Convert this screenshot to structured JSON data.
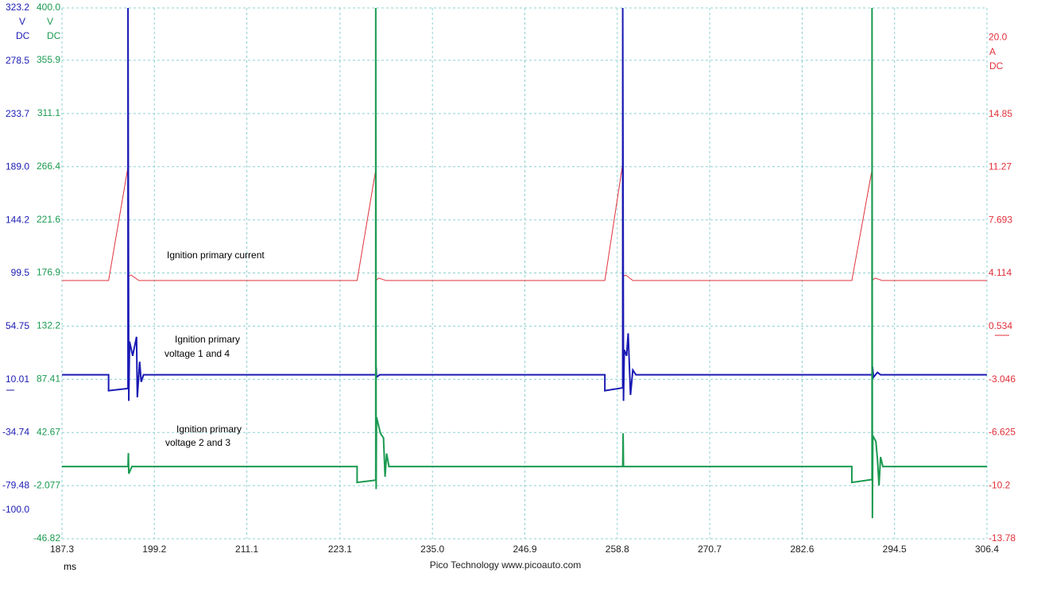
{
  "chart_data": {
    "type": "line",
    "x_unit": "ms",
    "xlim": [
      187.3,
      306.4
    ],
    "xticks": [
      187.3,
      199.2,
      211.1,
      223.1,
      {
        "value": 235.0,
        "label": "235.0"
      },
      246.9,
      258.8,
      270.7,
      282.6,
      294.5,
      306.4
    ],
    "footer": "Pico Technology   www.picoauto.com",
    "axes": [
      {
        "color": "#1a1ab4",
        "side": "left",
        "grid": false,
        "unit": [
          "V",
          "DC"
        ],
        "ylim": [
          -124.2,
          323.2
        ],
        "yticks": [
          323.2,
          278.5,
          233.7,
          {
            "value": 189.0,
            "label": "189.0"
          },
          144.2,
          99.5,
          54.75,
          10.01,
          -34.74,
          -79.48,
          {
            "value": -100.0,
            "label": "-100.0"
          }
        ]
      },
      {
        "color": "#1a9a50",
        "side": "left",
        "grid": true,
        "unit": [
          "V",
          "DC"
        ],
        "ylim": [
          -46.82,
          400.0
        ],
        "yticks": [
          {
            "value": 400.0,
            "label": "400.0"
          },
          355.9,
          311.1,
          266.4,
          221.6,
          176.9,
          132.2,
          87.41,
          42.67,
          -2.077,
          -46.82
        ]
      },
      {
        "color": "#e0303a",
        "side": "right",
        "grid": false,
        "unit": [
          "A",
          "DC"
        ],
        "ylim": [
          -13.78,
          22.01
        ],
        "yticks": [
          {
            "value": 20.0,
            "label": "20.0"
          },
          14.85,
          11.27,
          7.693,
          4.114,
          0.534,
          -3.046,
          -6.625,
          -10.2,
          -13.78
        ]
      }
    ],
    "series": [
      {
        "label": [
          "Ignition primary current"
        ],
        "color": "#e0303a",
        "axis": 2,
        "x": [
          187.3,
          193.3,
          195.8,
          195.8,
          196.2,
          197.2,
          225.3,
          227.7,
          227.7,
          228.1,
          229.0,
          257.2,
          259.5,
          259.5,
          259.9,
          260.8,
          289.0,
          291.6,
          291.6,
          292.0,
          292.9,
          306.4
        ],
        "values": [
          3.63,
          3.63,
          11.3,
          3.9,
          4.0,
          3.63,
          3.63,
          11.1,
          3.63,
          3.8,
          3.63,
          3.63,
          11.5,
          3.9,
          4.0,
          3.63,
          3.63,
          11.1,
          3.63,
          3.8,
          3.63,
          3.63
        ]
      },
      {
        "label": [
          "Ignition primary",
          "voltage 1 and 4"
        ],
        "color": "#1a1ab4",
        "axis": 0,
        "x": [
          187.3,
          193.3,
          193.3,
          195.8,
          195.8,
          195.9,
          196.0,
          196.4,
          196.9,
          197.0,
          197.3,
          197.5,
          197.8,
          227.7,
          227.75,
          227.8,
          228.2,
          257.2,
          257.2,
          259.5,
          259.5,
          259.6,
          259.7,
          260.0,
          260.2,
          260.5,
          260.8,
          261.2,
          291.6,
          291.65,
          291.8,
          292.3,
          292.7,
          306.4
        ],
        "values": [
          14.0,
          14.0,
          0.6,
          2.5,
          323.2,
          -8,
          42,
          30,
          46,
          -5,
          25,
          8,
          14.0,
          14.0,
          20,
          12,
          14.0,
          14.0,
          0.6,
          3,
          323.2,
          -8,
          35,
          30,
          49,
          -3,
          18,
          14.0,
          14.0,
          21,
          12,
          16,
          14.0,
          14.0
        ]
      },
      {
        "label": [
          "Ignition primary",
          "voltage 2 and 3"
        ],
        "color": "#1a9a50",
        "axis": 1,
        "x": [
          187.3,
          195.8,
          195.85,
          195.9,
          196.3,
          225.3,
          225.3,
          227.7,
          227.7,
          227.75,
          227.8,
          228.3,
          228.7,
          228.9,
          229.1,
          229.4,
          259.5,
          259.55,
          259.6,
          289.0,
          289.0,
          291.6,
          291.6,
          291.65,
          291.7,
          292.1,
          292.3,
          292.5,
          292.7,
          293.0,
          306.4
        ],
        "values": [
          14.0,
          14.0,
          25.3,
          8,
          14.0,
          14.0,
          0.6,
          2.5,
          400.0,
          -5,
          55.5,
          42,
          38,
          5.3,
          25,
          14.0,
          14.0,
          42,
          14.0,
          14.0,
          0.6,
          3,
          400.0,
          -29.5,
          40,
          35,
          20,
          -2,
          22,
          14.0,
          14.0
        ]
      }
    ]
  }
}
